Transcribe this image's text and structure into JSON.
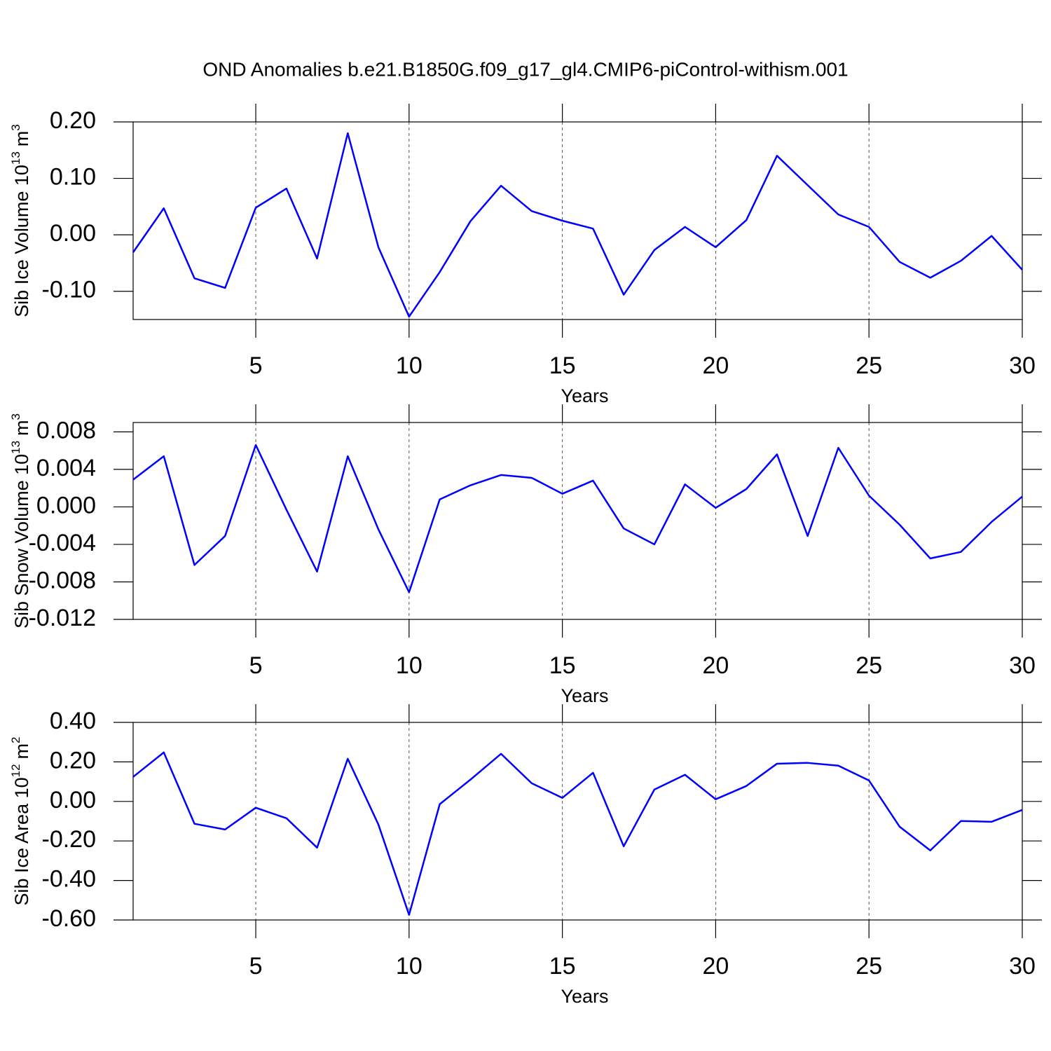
{
  "title": "OND Anomalies b.e21.B1850G.f09_g17_gl4.CMIP6-piControl-withism.001",
  "chart_data": [
    {
      "type": "line",
      "xlabel": "Years",
      "ylabel": [
        "Sib Ice Volume 10",
        "13",
        "m",
        "3"
      ],
      "color": "#0000ff",
      "grid": "x",
      "x": [
        1,
        2,
        3,
        4,
        5,
        6,
        7,
        8,
        9,
        10,
        11,
        12,
        13,
        14,
        15,
        16,
        17,
        18,
        19,
        20,
        21,
        22,
        23,
        24,
        25,
        26,
        27,
        28,
        29,
        30
      ],
      "values": [
        -0.031,
        0.047,
        -0.077,
        -0.094,
        0.048,
        0.082,
        -0.042,
        0.18,
        -0.022,
        -0.145,
        -0.066,
        0.024,
        0.087,
        0.042,
        0.025,
        0.011,
        -0.106,
        -0.027,
        0.014,
        -0.022,
        0.026,
        0.14,
        0.088,
        0.036,
        0.014,
        -0.048,
        -0.076,
        -0.046,
        -0.002,
        -0.062
      ],
      "xlim": [
        1,
        30
      ],
      "xticks": [
        5,
        10,
        15,
        20,
        25,
        30
      ],
      "ylim": [
        -0.15,
        0.2
      ],
      "yticks": [
        {
          "value": -0.1,
          "label": "-0.10"
        },
        {
          "value": 0,
          "label": "0.00"
        },
        {
          "value": 0.1,
          "label": "0.10"
        },
        {
          "value": 0.2,
          "label": "0.20"
        }
      ]
    },
    {
      "type": "line",
      "xlabel": "Years",
      "ylabel": [
        "Sib Snow Volume 10",
        "13",
        "m",
        "3"
      ],
      "color": "#0000ff",
      "grid": "x",
      "x": [
        1,
        2,
        3,
        4,
        5,
        6,
        7,
        8,
        9,
        10,
        11,
        12,
        13,
        14,
        15,
        16,
        17,
        18,
        19,
        20,
        21,
        22,
        23,
        24,
        25,
        26,
        27,
        28,
        29,
        30
      ],
      "values": [
        0.0029,
        0.0054,
        -0.0062,
        -0.0031,
        0.0066,
        -0.0003,
        -0.0069,
        0.0054,
        -0.0024,
        -0.0091,
        0.0008,
        0.0023,
        0.0034,
        0.0031,
        0.0014,
        0.0028,
        -0.0023,
        -0.004,
        0.0024,
        -0.0001,
        0.0019,
        0.0056,
        -0.0031,
        0.0063,
        0.0012,
        -0.0019,
        -0.0055,
        -0.0048,
        -0.0016,
        0.0011
      ],
      "xlim": [
        1,
        30
      ],
      "xticks": [
        5,
        10,
        15,
        20,
        25,
        30
      ],
      "ylim": [
        -0.012,
        0.009
      ],
      "yticks": [
        {
          "value": -0.012,
          "label": "-0.012"
        },
        {
          "value": -0.008,
          "label": "-0.008"
        },
        {
          "value": -0.004,
          "label": "-0.004"
        },
        {
          "value": 0,
          "label": "0.000"
        },
        {
          "value": 0.004,
          "label": "0.004"
        },
        {
          "value": 0.008,
          "label": "0.008"
        }
      ]
    },
    {
      "type": "line",
      "xlabel": "Years",
      "ylabel": [
        "Sib Ice Area 10",
        "12",
        "m",
        "2"
      ],
      "color": "#0000ff",
      "grid": "x",
      "x": [
        1,
        2,
        3,
        4,
        5,
        6,
        7,
        8,
        9,
        10,
        11,
        12,
        13,
        14,
        15,
        16,
        17,
        18,
        19,
        20,
        21,
        22,
        23,
        24,
        25,
        26,
        27,
        28,
        29,
        30
      ],
      "values": [
        0.124,
        0.248,
        -0.113,
        -0.142,
        -0.032,
        -0.085,
        -0.234,
        0.216,
        -0.117,
        -0.574,
        -0.014,
        0.11,
        0.241,
        0.092,
        0.018,
        0.145,
        -0.227,
        0.06,
        0.135,
        0.011,
        0.078,
        0.191,
        0.195,
        0.181,
        0.106,
        -0.128,
        -0.248,
        -0.099,
        -0.103,
        -0.043
      ],
      "xlim": [
        1,
        30
      ],
      "xticks": [
        5,
        10,
        15,
        20,
        25,
        30
      ],
      "ylim": [
        -0.6,
        0.4
      ],
      "yticks": [
        {
          "value": -0.6,
          "label": "-0.60"
        },
        {
          "value": -0.4,
          "label": "-0.40"
        },
        {
          "value": -0.2,
          "label": "-0.20"
        },
        {
          "value": 0,
          "label": "0.00"
        },
        {
          "value": 0.2,
          "label": "0.20"
        },
        {
          "value": 0.4,
          "label": "0.40"
        }
      ]
    }
  ]
}
